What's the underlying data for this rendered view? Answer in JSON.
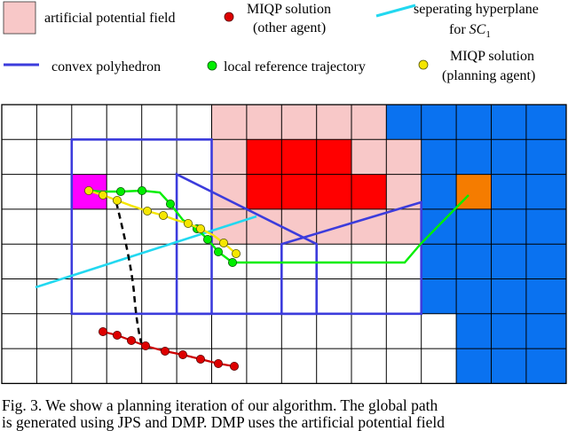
{
  "legend": {
    "apf": "artificial potential field",
    "miqp_other_line1": "MIQP  solution",
    "miqp_other_line2": "(other  agent)",
    "sep_line1": "seperating hyperplane",
    "sep_line2_prefix": "for ",
    "sep_line2_math": "SC",
    "sep_line2_sub": "1",
    "poly": "convex polyhedron",
    "local_ref": "local reference trajectory",
    "miqp_plan_line1": "MIQP solution",
    "miqp_plan_line2": "(planning  agent)"
  },
  "colors": {
    "apf": "#f8c8c8",
    "obstacle": "#ff0000",
    "wall": "#0a72f0",
    "goal": "#f57c00",
    "start": "#ff00ff",
    "polyhedron": "#3c3cdc",
    "hyperplane": "#22d8f0",
    "local_ref": "#00ee00",
    "miqp_plan": "#f5e600",
    "miqp_other": "#dd0000",
    "grid": "#000000"
  },
  "icons": {
    "apf": "pink-square-swatch",
    "miqp_other": "red-dot",
    "sep": "cyan-line",
    "poly": "blue-line",
    "local_ref": "green-dot",
    "miqp_plan": "yellow-dot"
  },
  "caption": {
    "line1": "Fig. 3.   We show a planning iteration of our algorithm. The global path",
    "line2": "is generated using JPS and DMP. DMP uses the artificial potential field"
  }
}
